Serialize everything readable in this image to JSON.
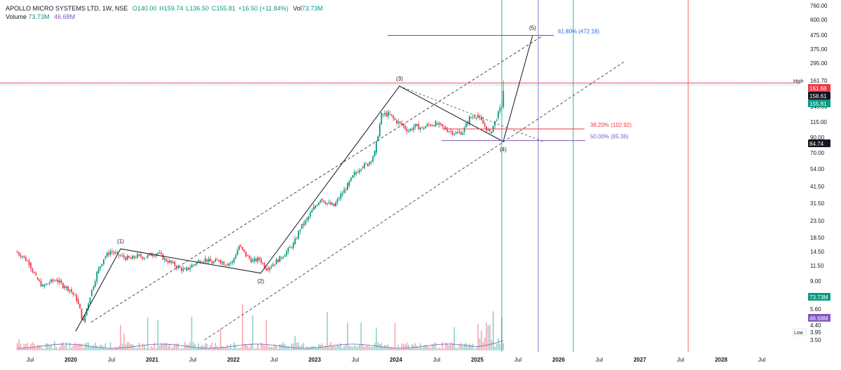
{
  "header": {
    "symbol": "APOLLO MICRO SYSTEMS LTD, 1W, NSE",
    "open": "O140.00",
    "high": "H159.74",
    "low": "L136.50",
    "close": "C155.81",
    "change": "+16.50 (+11.84%)",
    "vol_label": "Vol",
    "vol": "73.73M",
    "volume_label": "Volume",
    "volume_values": [
      "73.73M",
      "46.68M"
    ]
  },
  "colors": {
    "up": "#089981",
    "down": "#f23645",
    "wave": "#131722",
    "fib_blue": "#2962ff",
    "fib_pink": "#f23645",
    "fib_purple": "#7e57c2",
    "vline_green": "#089981",
    "vline_purple": "#7e57c2",
    "vline_red": "#f23645",
    "volume_ma": "#7e57c2"
  },
  "chart_data": {
    "type": "candlestick",
    "interval": "1W",
    "y_scale": "log",
    "y_ticks": [
      "760.00",
      "600.00",
      "475.00",
      "375.00",
      "295.00",
      "161.70",
      "145.00",
      "115.00",
      "90.00",
      "70.00",
      "54.00",
      "41.50",
      "31.50",
      "23.50",
      "18.50",
      "14.50",
      "11.50",
      "9.00",
      "5.60",
      "4.40",
      "3.95",
      "3.50"
    ],
    "x_ticks": [
      "Jul",
      "2020",
      "Jul",
      "2021",
      "Jul",
      "2022",
      "Jul",
      "2023",
      "Jul",
      "2024",
      "Jul",
      "2025",
      "Jul",
      "2026",
      "Jul",
      "2027",
      "Jul",
      "2028",
      "Jul"
    ],
    "price_scale_markers": {
      "high_label": "High",
      "high": "161.70",
      "marker1": "161.68",
      "marker2": "158.61",
      "last": "155.81",
      "marker_84": "84.74",
      "vol1": "73.73M",
      "vol2": "46.68M",
      "low_label": "Low",
      "low": "3.95"
    },
    "elliott_waves": [
      {
        "label": "(1)",
        "price": 15.2
      },
      {
        "label": "(2)",
        "price": 10.2
      },
      {
        "label": "(3)",
        "price": 158
      },
      {
        "label": "(4)",
        "price": 84
      },
      {
        "label": "(5)",
        "price": 472
      }
    ],
    "fib_levels": [
      {
        "label": "61.80% (472.18)",
        "price": 472.18
      },
      {
        "label": "38.20% (102.92)",
        "price": 102.92
      },
      {
        "label": "50.00% (85.36)",
        "price": 85.36
      }
    ],
    "horizontal_line": 158.61,
    "close_series_monthly": [
      {
        "date": "2019-05",
        "close": 14.5
      },
      {
        "date": "2019-06",
        "close": 13.5
      },
      {
        "date": "2019-07",
        "close": 12.0
      },
      {
        "date": "2019-08",
        "close": 9.5
      },
      {
        "date": "2019-09",
        "close": 8.2
      },
      {
        "date": "2019-10",
        "close": 8.8
      },
      {
        "date": "2019-11",
        "close": 9.2
      },
      {
        "date": "2019-12",
        "close": 8.3
      },
      {
        "date": "2020-01",
        "close": 7.8
      },
      {
        "date": "2020-02",
        "close": 6.6
      },
      {
        "date": "2020-03",
        "close": 4.6
      },
      {
        "date": "2020-04",
        "close": 7.0
      },
      {
        "date": "2020-05",
        "close": 10.2
      },
      {
        "date": "2020-06",
        "close": 13.0
      },
      {
        "date": "2020-07",
        "close": 14.6
      },
      {
        "date": "2020-08",
        "close": 13.8
      },
      {
        "date": "2020-09",
        "close": 13.2
      },
      {
        "date": "2020-10",
        "close": 12.8
      },
      {
        "date": "2020-11",
        "close": 13.6
      },
      {
        "date": "2020-12",
        "close": 13.2
      },
      {
        "date": "2021-01",
        "close": 13.8
      },
      {
        "date": "2021-02",
        "close": 14.2
      },
      {
        "date": "2021-03",
        "close": 12.8
      },
      {
        "date": "2021-04",
        "close": 12.0
      },
      {
        "date": "2021-05",
        "close": 11.2
      },
      {
        "date": "2021-06",
        "close": 10.6
      },
      {
        "date": "2021-07",
        "close": 11.5
      },
      {
        "date": "2021-08",
        "close": 12.4
      },
      {
        "date": "2021-09",
        "close": 12.8
      },
      {
        "date": "2021-10",
        "close": 12.0
      },
      {
        "date": "2021-11",
        "close": 12.6
      },
      {
        "date": "2021-12",
        "close": 11.8
      },
      {
        "date": "2022-01",
        "close": 12.2
      },
      {
        "date": "2022-02",
        "close": 16.0
      },
      {
        "date": "2022-03",
        "close": 13.6
      },
      {
        "date": "2022-04",
        "close": 12.4
      },
      {
        "date": "2022-05",
        "close": 12.8
      },
      {
        "date": "2022-06",
        "close": 11.0
      },
      {
        "date": "2022-07",
        "close": 11.8
      },
      {
        "date": "2022-08",
        "close": 13.0
      },
      {
        "date": "2022-09",
        "close": 14.5
      },
      {
        "date": "2022-10",
        "close": 16.5
      },
      {
        "date": "2022-11",
        "close": 21.0
      },
      {
        "date": "2022-12",
        "close": 24.0
      },
      {
        "date": "2023-01",
        "close": 29.0
      },
      {
        "date": "2023-02",
        "close": 34.0
      },
      {
        "date": "2023-03",
        "close": 31.5
      },
      {
        "date": "2023-04",
        "close": 30.0
      },
      {
        "date": "2023-05",
        "close": 36.0
      },
      {
        "date": "2023-06",
        "close": 42.0
      },
      {
        "date": "2023-07",
        "close": 50.0
      },
      {
        "date": "2023-08",
        "close": 56.0
      },
      {
        "date": "2023-09",
        "close": 58.0
      },
      {
        "date": "2023-10",
        "close": 70.0
      },
      {
        "date": "2023-11",
        "close": 128.0
      },
      {
        "date": "2023-12",
        "close": 130.0
      },
      {
        "date": "2024-01",
        "close": 118.0
      },
      {
        "date": "2024-02",
        "close": 110.0
      },
      {
        "date": "2024-03",
        "close": 100.0
      },
      {
        "date": "2024-04",
        "close": 108.0
      },
      {
        "date": "2024-05",
        "close": 104.0
      },
      {
        "date": "2024-06",
        "close": 110.0
      },
      {
        "date": "2024-07",
        "close": 112.0
      },
      {
        "date": "2024-08",
        "close": 106.0
      },
      {
        "date": "2024-09",
        "close": 100.0
      },
      {
        "date": "2024-10",
        "close": 96.0
      },
      {
        "date": "2024-11",
        "close": 98.0
      },
      {
        "date": "2024-12",
        "close": 122.0
      },
      {
        "date": "2025-01",
        "close": 128.0
      },
      {
        "date": "2025-02",
        "close": 112.0
      },
      {
        "date": "2025-03",
        "close": 96.0
      },
      {
        "date": "2025-04",
        "close": 122.0
      },
      {
        "date": "2025-05",
        "close": 155.8
      }
    ]
  }
}
